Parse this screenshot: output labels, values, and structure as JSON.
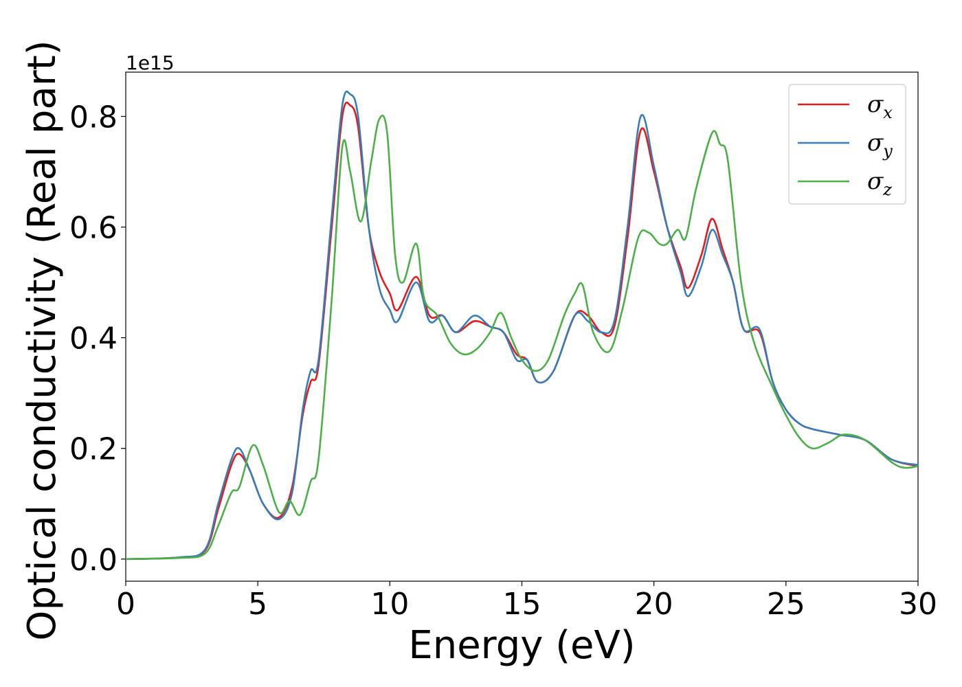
{
  "chart_data": {
    "type": "line",
    "xlabel": "Energy (eV)",
    "ylabel": "Optical conductivity (Real part)",
    "y_offset_label": "1e15",
    "xlim": [
      0,
      30
    ],
    "ylim": [
      -0.04,
      0.88
    ],
    "x_ticks": [
      0,
      5,
      10,
      15,
      20,
      25,
      30
    ],
    "x_tick_labels": [
      "0",
      "5",
      "10",
      "15",
      "20",
      "25",
      "30"
    ],
    "y_ticks": [
      0.0,
      0.2,
      0.4,
      0.6,
      0.8
    ],
    "y_tick_labels": [
      "0.0",
      "0.2",
      "0.4",
      "0.6",
      "0.8"
    ],
    "grid": false,
    "legend_position": "top-right",
    "series": [
      {
        "name": "x",
        "legend_symbol": "σ",
        "legend_subscript": "x",
        "color": "#e41a1c",
        "x": [
          0,
          2,
          3,
          3.5,
          4,
          4.3,
          4.7,
          5.2,
          5.8,
          6.3,
          6.7,
          7.0,
          7.3,
          7.8,
          8.2,
          8.5,
          8.8,
          9.2,
          9.6,
          10.0,
          10.3,
          11.0,
          11.5,
          12.0,
          12.5,
          13.2,
          13.8,
          14.3,
          14.8,
          15.2,
          15.6,
          16.2,
          17.0,
          17.5,
          18.0,
          18.5,
          19.0,
          19.5,
          20.0,
          20.5,
          21.0,
          21.3,
          21.8,
          22.2,
          22.6,
          23.0,
          23.4,
          24.0,
          24.5,
          25.0,
          25.5,
          26.0,
          27.0,
          28.0,
          29.0,
          30.0
        ],
        "y": [
          0.0,
          0.003,
          0.015,
          0.09,
          0.17,
          0.19,
          0.16,
          0.1,
          0.075,
          0.13,
          0.26,
          0.32,
          0.35,
          0.6,
          0.8,
          0.82,
          0.78,
          0.6,
          0.52,
          0.48,
          0.45,
          0.51,
          0.44,
          0.44,
          0.41,
          0.43,
          0.42,
          0.41,
          0.37,
          0.36,
          0.32,
          0.34,
          0.44,
          0.44,
          0.41,
          0.42,
          0.58,
          0.775,
          0.7,
          0.6,
          0.53,
          0.49,
          0.55,
          0.615,
          0.56,
          0.5,
          0.415,
          0.41,
          0.32,
          0.27,
          0.245,
          0.235,
          0.225,
          0.215,
          0.18,
          0.168
        ]
      },
      {
        "name": "y",
        "legend_symbol": "σ",
        "legend_subscript": "y",
        "color": "#377eb8",
        "x": [
          0,
          2,
          3,
          3.5,
          4,
          4.3,
          4.7,
          5.2,
          5.8,
          6.3,
          6.7,
          7.0,
          7.3,
          7.8,
          8.2,
          8.5,
          8.8,
          9.2,
          9.6,
          10.0,
          10.3,
          11.0,
          11.5,
          12.0,
          12.5,
          13.2,
          13.8,
          14.3,
          14.8,
          15.2,
          15.6,
          16.2,
          17.0,
          17.5,
          18.0,
          18.5,
          19.0,
          19.5,
          20.0,
          20.5,
          21.0,
          21.3,
          21.8,
          22.2,
          22.6,
          23.0,
          23.4,
          24.0,
          24.5,
          25.0,
          25.5,
          26.0,
          27.0,
          28.0,
          29.0,
          30.0
        ],
        "y": [
          0.0,
          0.003,
          0.017,
          0.1,
          0.18,
          0.2,
          0.16,
          0.1,
          0.072,
          0.12,
          0.27,
          0.34,
          0.36,
          0.62,
          0.82,
          0.84,
          0.8,
          0.6,
          0.49,
          0.45,
          0.43,
          0.5,
          0.43,
          0.44,
          0.41,
          0.44,
          0.42,
          0.41,
          0.36,
          0.36,
          0.32,
          0.34,
          0.44,
          0.43,
          0.41,
          0.43,
          0.6,
          0.8,
          0.71,
          0.6,
          0.52,
          0.475,
          0.53,
          0.595,
          0.55,
          0.5,
          0.415,
          0.415,
          0.32,
          0.27,
          0.245,
          0.235,
          0.225,
          0.215,
          0.18,
          0.17
        ]
      },
      {
        "name": "z",
        "legend_symbol": "σ",
        "legend_subscript": "z",
        "color": "#4daf4a",
        "x": [
          0,
          2,
          3,
          3.5,
          4,
          4.3,
          4.8,
          5.2,
          5.8,
          6.2,
          6.6,
          7.0,
          7.3,
          7.8,
          8.2,
          8.5,
          8.9,
          9.3,
          9.6,
          9.9,
          10.2,
          10.5,
          11.0,
          11.3,
          11.8,
          12.3,
          12.8,
          13.3,
          13.8,
          14.2,
          14.6,
          15.0,
          15.5,
          16.0,
          16.6,
          17.0,
          17.3,
          17.7,
          18.3,
          18.8,
          19.4,
          19.8,
          20.2,
          20.5,
          20.9,
          21.2,
          21.6,
          22.2,
          22.5,
          22.8,
          23.3,
          23.8,
          24.5,
          25.0,
          25.5,
          26.0,
          26.6,
          27.2,
          28.0,
          29.0,
          29.5,
          30.0
        ],
        "y": [
          0.0,
          0.002,
          0.01,
          0.06,
          0.12,
          0.13,
          0.205,
          0.17,
          0.085,
          0.105,
          0.08,
          0.14,
          0.18,
          0.47,
          0.745,
          0.7,
          0.61,
          0.72,
          0.795,
          0.77,
          0.55,
          0.5,
          0.57,
          0.47,
          0.44,
          0.39,
          0.37,
          0.38,
          0.41,
          0.445,
          0.4,
          0.36,
          0.34,
          0.36,
          0.44,
          0.48,
          0.495,
          0.41,
          0.375,
          0.45,
          0.58,
          0.59,
          0.57,
          0.57,
          0.595,
          0.58,
          0.67,
          0.77,
          0.75,
          0.72,
          0.5,
          0.39,
          0.31,
          0.26,
          0.22,
          0.2,
          0.21,
          0.225,
          0.215,
          0.175,
          0.165,
          0.168
        ]
      }
    ]
  }
}
